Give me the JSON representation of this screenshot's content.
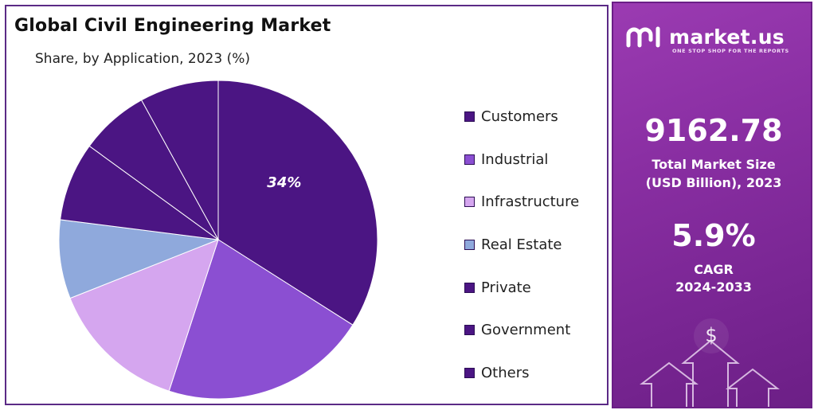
{
  "chart_data": {
    "type": "pie",
    "title": "Global Civil Engineering Market",
    "subtitle": "Share, by Application, 2023 (%)",
    "slices": [
      {
        "label": "Customers",
        "value": 34,
        "color": "#4b1583",
        "data_label": "34%"
      },
      {
        "label": "Industrial",
        "value": 21,
        "color": "#8b4fd2",
        "data_label": ""
      },
      {
        "label": "Infrastructure",
        "value": 14,
        "color": "#d5a6ef",
        "data_label": ""
      },
      {
        "label": "Real Estate",
        "value": 8,
        "color": "#8fa9dc",
        "data_label": ""
      },
      {
        "label": "Private",
        "value": 8,
        "color": "#4b1583",
        "data_label": ""
      },
      {
        "label": "Government",
        "value": 7,
        "color": "#4b1583",
        "data_label": ""
      },
      {
        "label": "Others",
        "value": 8,
        "color": "#4b1583",
        "data_label": ""
      }
    ],
    "legend_position": "right"
  },
  "brand": {
    "name": "market.us",
    "tagline": "ONE STOP SHOP FOR THE REPORTS"
  },
  "stats": {
    "market_size_value": "9162.78",
    "market_size_label_1": "Total Market Size",
    "market_size_label_2": "(USD Billion), 2023",
    "cagr_value": "5.9%",
    "cagr_label_1": "CAGR",
    "cagr_label_2": "2024-2033"
  },
  "colors": {
    "panel_gradient_start": "#9b3bb2",
    "panel_gradient_end": "#6c1f86",
    "border": "#5b2a86"
  }
}
